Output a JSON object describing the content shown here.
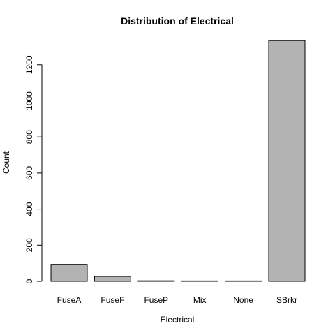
{
  "chart_data": {
    "type": "bar",
    "title": "Distribution of Electrical",
    "xlabel": "Electrical",
    "ylabel": "Count",
    "categories": [
      "FuseA",
      "FuseF",
      "FuseP",
      "Mix",
      "None",
      "SBrkr"
    ],
    "values": [
      94,
      27,
      3,
      1,
      1,
      1334
    ],
    "ylim": [
      0,
      1334
    ],
    "yticks": [
      0,
      200,
      400,
      600,
      800,
      1000,
      1200
    ],
    "bar_fill": "#b3b3b3",
    "bar_stroke": "#000000",
    "grid": false,
    "legend": "none"
  }
}
